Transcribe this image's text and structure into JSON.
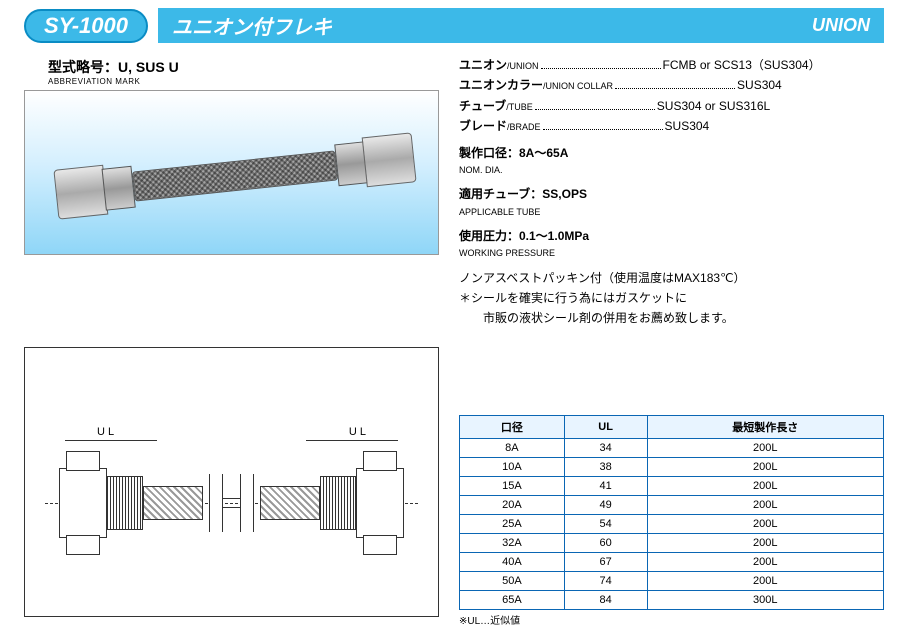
{
  "header": {
    "model": "SY-1000",
    "title_jp": "ユニオン付フレキ",
    "title_en": "UNION"
  },
  "abbrev": {
    "label_jp": "型式略号：",
    "value": "U, SUS U",
    "label_en": "ABBREVIATION MARK"
  },
  "materials": [
    {
      "label_jp": "ユニオン",
      "label_en": "/UNION",
      "value": "FCMB or SCS13（SUS304）"
    },
    {
      "label_jp": "ユニオンカラー",
      "label_en": "/UNION COLLAR",
      "value": "SUS304"
    },
    {
      "label_jp": "チューブ",
      "label_en": "/TUBE",
      "value": "SUS304 or SUS316L"
    },
    {
      "label_jp": "ブレード",
      "label_en": "/BRADE",
      "value": "SUS304"
    }
  ],
  "specs": {
    "nom_dia_jp": "製作口径：8A〜65A",
    "nom_dia_en": "NOM. DIA.",
    "app_tube_jp": "適用チューブ：SS,OPS",
    "app_tube_en": "APPLICABLE TUBE",
    "pressure_jp": "使用圧力：0.1〜1.0MPa",
    "pressure_en": "WORKING PRESSURE",
    "note1": "ノンアスベストパッキン付（使用温度はMAX183℃）",
    "note2": "＊シールを確実に行う為にはガスケットに",
    "note3": "　　市販の液状シール剤の併用をお薦め致します。"
  },
  "drawing": {
    "ul_label_l": "U L",
    "ul_label_r": "U L"
  },
  "table": {
    "columns": [
      "口径",
      "UL",
      "最短製作長さ"
    ],
    "rows": [
      [
        "8A",
        "34",
        "200L"
      ],
      [
        "10A",
        "38",
        "200L"
      ],
      [
        "15A",
        "41",
        "200L"
      ],
      [
        "20A",
        "49",
        "200L"
      ],
      [
        "25A",
        "54",
        "200L"
      ],
      [
        "32A",
        "60",
        "200L"
      ],
      [
        "40A",
        "67",
        "200L"
      ],
      [
        "50A",
        "74",
        "200L"
      ],
      [
        "65A",
        "84",
        "300L"
      ]
    ],
    "note": "※UL…近似値"
  },
  "colors": {
    "accent": "#3cb9e8",
    "table_border": "#0a66b4",
    "table_header_bg": "#e8f4ff"
  }
}
